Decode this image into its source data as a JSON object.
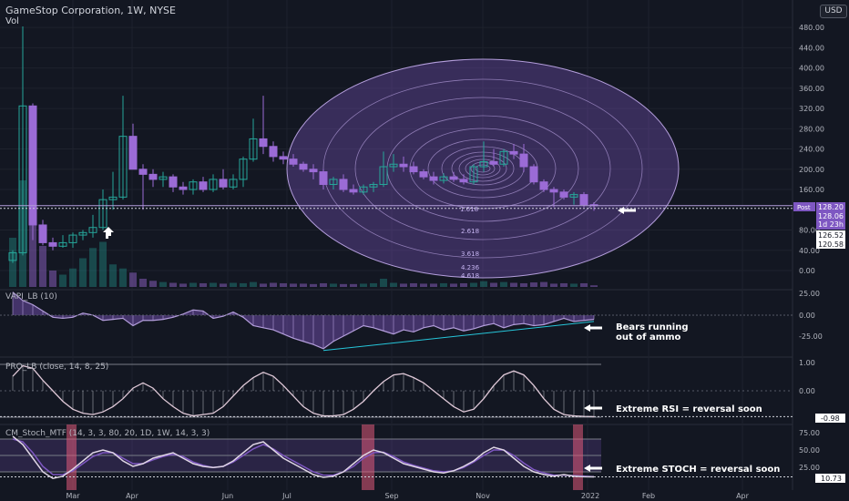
{
  "header": {
    "title": "GameStop Corporation, 1W, NYSE",
    "vol_label": "Vol",
    "currency": "USD"
  },
  "panes": {
    "vapi": {
      "title": "VAPI_LB (10)",
      "axis": [
        "25.00",
        "0.00",
        "-25.00"
      ]
    },
    "pro": {
      "title": "PRO_LB (close, 14, 8, 25)",
      "axis": [
        "1.00",
        "0.00"
      ],
      "value": "-0.98"
    },
    "stoch": {
      "title": "CM_Stoch_MTF (14, 3, 3, 80, 20, 1D, 1W, 14, 3, 3)",
      "axis": [
        "75.00",
        "50.00",
        "25.00"
      ],
      "value": "10.73"
    }
  },
  "price_axis": [
    "480.00",
    "440.00",
    "400.00",
    "360.00",
    "320.00",
    "280.00",
    "240.00",
    "200.00",
    "160.00",
    "80.00",
    "40.00",
    "0.00"
  ],
  "price_badges": {
    "post_label": "Post",
    "post_price": "128.20",
    "last_price": "128.06",
    "countdown": "1d 23h",
    "level1": "126.52",
    "level2": "120.58"
  },
  "x_axis": [
    "Mar",
    "Apr",
    "Jun",
    "Jul",
    "Sep",
    "Nov",
    "2022",
    "Feb",
    "Apr"
  ],
  "fib_labels": [
    "1.618",
    "2.618",
    "3.618",
    "4.236",
    "4.618"
  ],
  "annotations": {
    "bears": [
      "Bears running",
      "out of ammo"
    ],
    "rsi": "Extreme RSI = reversal soon",
    "stoch": "Extreme STOCH = reversal soon"
  },
  "colors": {
    "background": "#131722",
    "bull_candle": "#26a69a",
    "bear_candle": "#9b6bd6",
    "fib_circle": "#b39ddb",
    "grid": "#2a2e39",
    "extreme_highlight": "#e05a7a"
  },
  "chart_data": {
    "type": "candlestick",
    "interval": "1W",
    "price_axis_ticks": [
      0,
      40,
      80,
      160,
      200,
      240,
      280,
      320,
      360,
      400,
      440,
      480
    ],
    "candles": [
      {
        "o": 20,
        "h": 40,
        "l": 15,
        "c": 35
      },
      {
        "o": 35,
        "h": 482,
        "l": 30,
        "c": 325
      },
      {
        "o": 325,
        "h": 330,
        "l": 60,
        "c": 90
      },
      {
        "o": 90,
        "h": 100,
        "l": 50,
        "c": 55
      },
      {
        "o": 55,
        "h": 65,
        "l": 40,
        "c": 48
      },
      {
        "o": 48,
        "h": 70,
        "l": 45,
        "c": 55
      },
      {
        "o": 55,
        "h": 75,
        "l": 45,
        "c": 70
      },
      {
        "o": 70,
        "h": 80,
        "l": 60,
        "c": 75
      },
      {
        "o": 75,
        "h": 110,
        "l": 65,
        "c": 85
      },
      {
        "o": 85,
        "h": 160,
        "l": 80,
        "c": 140
      },
      {
        "o": 140,
        "h": 195,
        "l": 120,
        "c": 145
      },
      {
        "o": 145,
        "h": 345,
        "l": 140,
        "c": 265
      },
      {
        "o": 265,
        "h": 290,
        "l": 200,
        "c": 200
      },
      {
        "o": 200,
        "h": 210,
        "l": 120,
        "c": 190
      },
      {
        "o": 190,
        "h": 200,
        "l": 165,
        "c": 180
      },
      {
        "o": 180,
        "h": 195,
        "l": 165,
        "c": 185
      },
      {
        "o": 185,
        "h": 190,
        "l": 155,
        "c": 165
      },
      {
        "o": 165,
        "h": 175,
        "l": 150,
        "c": 160
      },
      {
        "o": 160,
        "h": 180,
        "l": 150,
        "c": 175
      },
      {
        "o": 175,
        "h": 185,
        "l": 155,
        "c": 160
      },
      {
        "o": 160,
        "h": 190,
        "l": 155,
        "c": 180
      },
      {
        "o": 180,
        "h": 200,
        "l": 160,
        "c": 165
      },
      {
        "o": 165,
        "h": 190,
        "l": 160,
        "c": 180
      },
      {
        "o": 180,
        "h": 225,
        "l": 165,
        "c": 220
      },
      {
        "o": 220,
        "h": 300,
        "l": 215,
        "c": 260
      },
      {
        "o": 260,
        "h": 345,
        "l": 230,
        "c": 245
      },
      {
        "o": 245,
        "h": 255,
        "l": 215,
        "c": 225
      },
      {
        "o": 225,
        "h": 235,
        "l": 210,
        "c": 220
      },
      {
        "o": 220,
        "h": 230,
        "l": 205,
        "c": 210
      },
      {
        "o": 210,
        "h": 215,
        "l": 195,
        "c": 200
      },
      {
        "o": 200,
        "h": 210,
        "l": 180,
        "c": 195
      },
      {
        "o": 195,
        "h": 200,
        "l": 160,
        "c": 170
      },
      {
        "o": 170,
        "h": 185,
        "l": 160,
        "c": 180
      },
      {
        "o": 180,
        "h": 190,
        "l": 155,
        "c": 160
      },
      {
        "o": 160,
        "h": 170,
        "l": 150,
        "c": 155
      },
      {
        "o": 155,
        "h": 170,
        "l": 150,
        "c": 165
      },
      {
        "o": 165,
        "h": 175,
        "l": 155,
        "c": 170
      },
      {
        "o": 170,
        "h": 235,
        "l": 165,
        "c": 205
      },
      {
        "o": 205,
        "h": 230,
        "l": 195,
        "c": 210
      },
      {
        "o": 210,
        "h": 225,
        "l": 195,
        "c": 205
      },
      {
        "o": 205,
        "h": 215,
        "l": 190,
        "c": 195
      },
      {
        "o": 195,
        "h": 200,
        "l": 180,
        "c": 185
      },
      {
        "o": 185,
        "h": 195,
        "l": 170,
        "c": 178
      },
      {
        "o": 178,
        "h": 192,
        "l": 172,
        "c": 185
      },
      {
        "o": 185,
        "h": 195,
        "l": 175,
        "c": 180
      },
      {
        "o": 180,
        "h": 190,
        "l": 170,
        "c": 175
      },
      {
        "o": 175,
        "h": 210,
        "l": 170,
        "c": 205
      },
      {
        "o": 205,
        "h": 255,
        "l": 195,
        "c": 215
      },
      {
        "o": 215,
        "h": 240,
        "l": 205,
        "c": 210
      },
      {
        "o": 210,
        "h": 240,
        "l": 205,
        "c": 235
      },
      {
        "o": 235,
        "h": 250,
        "l": 220,
        "c": 230
      },
      {
        "o": 230,
        "h": 250,
        "l": 195,
        "c": 205
      },
      {
        "o": 205,
        "h": 210,
        "l": 170,
        "c": 175
      },
      {
        "o": 175,
        "h": 180,
        "l": 155,
        "c": 160
      },
      {
        "o": 160,
        "h": 165,
        "l": 125,
        "c": 155
      },
      {
        "o": 155,
        "h": 160,
        "l": 140,
        "c": 145
      },
      {
        "o": 145,
        "h": 155,
        "l": 130,
        "c": 150
      },
      {
        "o": 150,
        "h": 155,
        "l": 125,
        "c": 130
      },
      {
        "o": 130,
        "h": 135,
        "l": 118,
        "c": 128.06
      }
    ],
    "volume": [
      120,
      260,
      150,
      100,
      40,
      30,
      45,
      70,
      95,
      110,
      55,
      45,
      35,
      20,
      15,
      12,
      10,
      8,
      10,
      9,
      10,
      8,
      10,
      9,
      12,
      8,
      10,
      9,
      8,
      8,
      7,
      9,
      8,
      7,
      7,
      8,
      9,
      20,
      10,
      8,
      9,
      8,
      8,
      9,
      8,
      9,
      10,
      14,
      10,
      12,
      10,
      9,
      11,
      12,
      8,
      9,
      8,
      9,
      4
    ],
    "vapi": [
      22,
      14,
      10,
      4,
      -2,
      -3,
      -2,
      2,
      0,
      -5,
      -4,
      -3,
      -10,
      -5,
      -5,
      -4,
      -2,
      1,
      5,
      4,
      -3,
      -1,
      3,
      -2,
      -10,
      -12,
      -14,
      -18,
      -22,
      -25,
      -28,
      -32,
      -25,
      -20,
      -15,
      -10,
      -12,
      -15,
      -18,
      -14,
      -16,
      -12,
      -10,
      -14,
      -12,
      -15,
      -13,
      -10,
      -8,
      -12,
      -9,
      -8,
      -10,
      -9,
      -6,
      -3,
      -6,
      -5,
      -4
    ],
    "pro": [
      0.55,
      0.95,
      0.85,
      0.4,
      0.0,
      -0.4,
      -0.7,
      -0.85,
      -0.9,
      -0.8,
      -0.6,
      -0.3,
      0.1,
      0.3,
      0.1,
      -0.3,
      -0.6,
      -0.85,
      -0.95,
      -0.9,
      -0.85,
      -0.6,
      -0.2,
      0.2,
      0.5,
      0.7,
      0.55,
      0.2,
      -0.2,
      -0.6,
      -0.85,
      -0.95,
      -0.95,
      -0.9,
      -0.7,
      -0.4,
      0.0,
      0.35,
      0.6,
      0.65,
      0.5,
      0.3,
      0.0,
      -0.3,
      -0.6,
      -0.8,
      -0.7,
      -0.3,
      0.2,
      0.6,
      0.75,
      0.6,
      0.2,
      -0.3,
      -0.7,
      -0.9,
      -0.95,
      -0.97,
      -0.98
    ],
    "stoch_k": [
      85,
      70,
      45,
      20,
      8,
      12,
      25,
      40,
      55,
      60,
      55,
      40,
      30,
      35,
      45,
      50,
      55,
      45,
      35,
      30,
      28,
      30,
      40,
      55,
      70,
      75,
      60,
      45,
      35,
      25,
      15,
      10,
      12,
      20,
      35,
      50,
      60,
      55,
      45,
      35,
      30,
      25,
      20,
      18,
      22,
      30,
      40,
      55,
      65,
      60,
      45,
      30,
      20,
      15,
      12,
      15,
      12,
      11,
      10.73
    ],
    "stoch_d": [
      80,
      75,
      55,
      30,
      15,
      15,
      22,
      35,
      48,
      55,
      55,
      45,
      35,
      35,
      42,
      48,
      52,
      48,
      38,
      32,
      28,
      30,
      38,
      50,
      62,
      70,
      62,
      50,
      40,
      30,
      20,
      14,
      14,
      20,
      30,
      45,
      55,
      56,
      48,
      38,
      32,
      27,
      22,
      20,
      22,
      28,
      38,
      50,
      60,
      60,
      50,
      36,
      24,
      18,
      14,
      14,
      13,
      12,
      11
    ]
  }
}
